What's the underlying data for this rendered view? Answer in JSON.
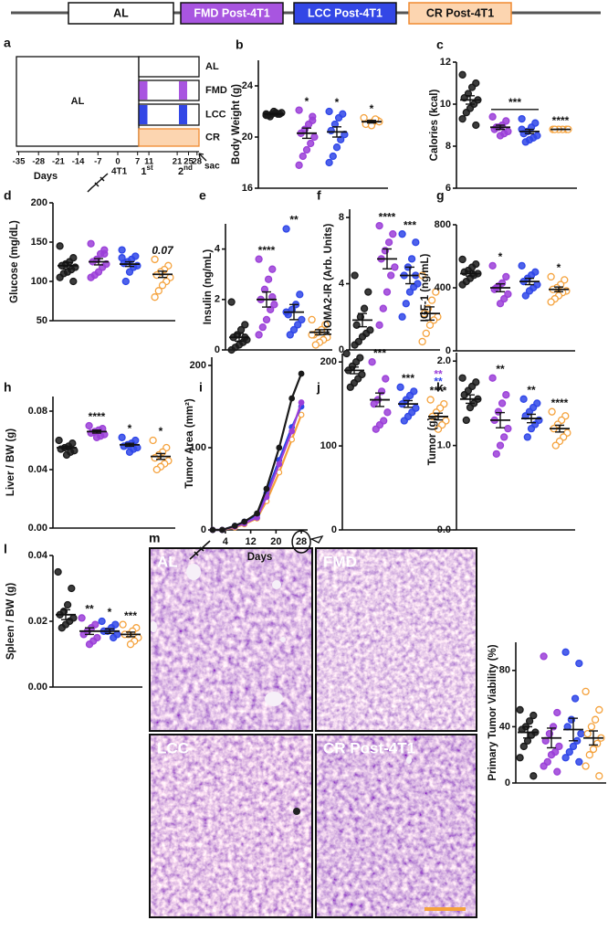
{
  "legend": {
    "items": [
      {
        "label": "AL",
        "color": "#ffffff"
      },
      {
        "label": "FMD Post-4T1",
        "color": "#a855e0"
      },
      {
        "label": "LCC Post-4T1",
        "color": "#3347e6"
      },
      {
        "label": "CR Post-4T1",
        "color": "#fcd5b0"
      }
    ]
  },
  "schematic": {
    "panel": "a",
    "phase_label": "AL",
    "rows": [
      "AL",
      "FMD",
      "LCC",
      "CR"
    ],
    "ticks": [
      -35,
      -28,
      -21,
      -14,
      -7,
      0,
      7,
      11,
      21,
      25,
      28
    ],
    "xlabel": "Days",
    "injection": "4T1",
    "cycles": [
      {
        "number": "1",
        "suffix": "st"
      },
      {
        "number": "2",
        "suffix": "nd"
      }
    ],
    "endpoint": "sac"
  },
  "chart_data": [
    {
      "type": "strip",
      "panel": "b",
      "ylabel": "Body Weight (g)",
      "ylim": [
        16,
        26
      ],
      "yticks": [
        16,
        20,
        24
      ],
      "series": [
        {
          "color": "#1a1a1a",
          "values": [
            21.7,
            21.8,
            21.9,
            21.8,
            21.7,
            21.9,
            21.8,
            22.0,
            21.6,
            21.8
          ],
          "mean": 21.8,
          "sem": 0.05
        },
        {
          "color": "#9b3fd8",
          "values": [
            22.1,
            21.3,
            21.0,
            20.6,
            20.3,
            20.0,
            19.5,
            19.0,
            18.5,
            17.8,
            21.6
          ],
          "mean": 20.3,
          "sem": 0.4,
          "label": "*"
        },
        {
          "color": "#2f46e8",
          "values": [
            22.0,
            21.8,
            21.5,
            21.0,
            20.5,
            20.2,
            19.8,
            19.2,
            18.5,
            18.0
          ],
          "mean": 20.4,
          "sem": 0.4,
          "label": "*"
        },
        {
          "color": "#f5a23c",
          "hollow": true,
          "values": [
            21.5,
            21.3,
            21.2,
            21.1,
            21.0,
            21.2,
            21.4,
            20.9
          ],
          "mean": 21.2,
          "sem": 0.1,
          "label": "*"
        }
      ]
    },
    {
      "type": "strip",
      "panel": "c",
      "ylabel": "Calories (kcal)",
      "ylim": [
        6,
        12
      ],
      "yticks": [
        6,
        8,
        10,
        12
      ],
      "bracket_label": "***",
      "series": [
        {
          "color": "#1a1a1a",
          "values": [
            11.4,
            11.0,
            10.8,
            10.5,
            10.3,
            10.2,
            10.0,
            9.8,
            9.6,
            9.3,
            9.0
          ],
          "mean": 10.2,
          "sem": 0.2
        },
        {
          "color": "#9b3fd8",
          "values": [
            9.4,
            9.2,
            9.0,
            8.9,
            8.8,
            8.7,
            8.6,
            8.5,
            8.9
          ],
          "mean": 8.9,
          "sem": 0.1
        },
        {
          "color": "#2f46e8",
          "values": [
            9.3,
            9.1,
            8.9,
            8.7,
            8.6,
            8.5,
            8.4,
            8.3,
            8.2,
            8.8
          ],
          "mean": 8.7,
          "sem": 0.1
        },
        {
          "color": "#f5a23c",
          "hollow": true,
          "values": [
            8.8,
            8.8,
            8.8,
            8.8,
            8.8,
            8.8
          ],
          "mean": 8.8,
          "sem": 0.01,
          "label": "****"
        }
      ]
    },
    {
      "type": "strip",
      "panel": "d",
      "ylabel": "Glucose (mg/dL)",
      "ylim": [
        50,
        200
      ],
      "yticks": [
        50,
        100,
        150,
        200
      ],
      "series": [
        {
          "color": "#1a1a1a",
          "values": [
            145,
            130,
            125,
            122,
            120,
            118,
            115,
            112,
            110,
            105,
            100
          ],
          "mean": 120,
          "sem": 4
        },
        {
          "color": "#9b3fd8",
          "values": [
            148,
            140,
            135,
            128,
            125,
            122,
            118,
            112,
            108,
            105,
            135
          ],
          "mean": 125,
          "sem": 4
        },
        {
          "color": "#2f46e8",
          "values": [
            140,
            132,
            128,
            125,
            123,
            120,
            118,
            112,
            100,
            130
          ],
          "mean": 122,
          "sem": 3
        },
        {
          "color": "#f5a23c",
          "hollow": true,
          "values": [
            128,
            120,
            115,
            112,
            108,
            105,
            100,
            95,
            88,
            80
          ],
          "mean": 109,
          "sem": 4,
          "label": "0.07",
          "label_style": "italic"
        }
      ]
    },
    {
      "type": "strip",
      "panel": "e",
      "ylabel": "Insulin (ng/mL)",
      "ylim": [
        0,
        5
      ],
      "yticks": [
        0,
        2,
        4
      ],
      "series": [
        {
          "color": "#1a1a1a",
          "values": [
            1.9,
            1.0,
            0.8,
            0.6,
            0.5,
            0.4,
            0.3,
            0.2,
            0.1,
            0.0,
            0.5
          ],
          "mean": 0.5,
          "sem": 0.15
        },
        {
          "color": "#9b3fd8",
          "values": [
            3.6,
            3.2,
            2.8,
            2.4,
            2.0,
            1.8,
            1.6,
            1.2,
            0.9,
            0.6,
            2.1
          ],
          "mean": 2.0,
          "sem": 0.3,
          "label": "****"
        },
        {
          "color": "#2f46e8",
          "values": [
            4.8,
            2.2,
            1.8,
            1.6,
            1.4,
            1.2,
            1.0,
            0.8,
            0.6,
            1.5
          ],
          "mean": 1.5,
          "sem": 0.3,
          "label": "**"
        },
        {
          "color": "#f5a23c",
          "hollow": true,
          "values": [
            1.2,
            1.0,
            0.8,
            0.7,
            0.6,
            0.5,
            0.4,
            0.3,
            0.2,
            0.6
          ],
          "mean": 0.7,
          "sem": 0.1
        }
      ]
    },
    {
      "type": "strip",
      "panel": "f",
      "ylabel": "HOMA2-IR (Arb. Units)",
      "ylim": [
        0,
        8.5
      ],
      "yticks": [
        0,
        4,
        8
      ],
      "series": [
        {
          "color": "#1a1a1a",
          "values": [
            4.5,
            3.5,
            2.5,
            2.0,
            1.5,
            1.2,
            1.0,
            0.8,
            0.5,
            0.3
          ],
          "mean": 1.8,
          "sem": 0.4
        },
        {
          "color": "#9b3fd8",
          "values": [
            7.5,
            7.0,
            6.5,
            6.0,
            5.5,
            5.0,
            4.5,
            3.5,
            2.5,
            1.5
          ],
          "mean": 5.5,
          "sem": 0.6,
          "label": "****"
        },
        {
          "color": "#2f46e8",
          "values": [
            7.0,
            6.5,
            5.5,
            5.0,
            4.5,
            4.0,
            3.8,
            3.5,
            2.8,
            2.0,
            4.5
          ],
          "mean": 4.5,
          "sem": 0.5,
          "label": "***"
        },
        {
          "color": "#f5a23c",
          "hollow": true,
          "values": [
            4.5,
            3.5,
            3.0,
            2.5,
            2.2,
            2.0,
            1.8,
            1.5,
            1.0,
            0.5
          ],
          "mean": 2.2,
          "sem": 0.4
        }
      ]
    },
    {
      "type": "strip",
      "panel": "g",
      "ylabel": "IGF-1 (ng/mL)",
      "ylim": [
        0,
        800
      ],
      "yticks": [
        0,
        400,
        800
      ],
      "series": [
        {
          "color": "#1a1a1a",
          "values": [
            580,
            550,
            530,
            510,
            500,
            490,
            480,
            460,
            440,
            420
          ],
          "mean": 490,
          "sem": 15
        },
        {
          "color": "#9b3fd8",
          "values": [
            540,
            470,
            430,
            410,
            390,
            360,
            330,
            300,
            400
          ],
          "mean": 400,
          "sem": 25,
          "label": "*"
        },
        {
          "color": "#2f46e8",
          "values": [
            540,
            500,
            480,
            460,
            440,
            420,
            400,
            380,
            350
          ],
          "mean": 440,
          "sem": 20
        },
        {
          "color": "#f5a23c",
          "hollow": true,
          "values": [
            470,
            450,
            420,
            400,
            390,
            380,
            370,
            350,
            330,
            310
          ],
          "mean": 390,
          "sem": 15,
          "label": "*"
        }
      ]
    },
    {
      "type": "strip",
      "panel": "h",
      "ylabel": "Liver / BW (g)",
      "ylim": [
        0,
        0.09
      ],
      "yticks": [
        {
          "value": 0,
          "label": "0.00"
        },
        {
          "value": 0.04,
          "label": "0.04"
        },
        {
          "value": 0.08,
          "label": "0.08"
        }
      ],
      "series": [
        {
          "color": "#1a1a1a",
          "values": [
            0.06,
            0.058,
            0.056,
            0.055,
            0.054,
            0.053,
            0.052,
            0.05
          ],
          "mean": 0.055,
          "sem": 0.001
        },
        {
          "color": "#9b3fd8",
          "values": [
            0.07,
            0.068,
            0.067,
            0.066,
            0.065,
            0.064,
            0.063,
            0.062
          ],
          "mean": 0.066,
          "sem": 0.001,
          "label": "****"
        },
        {
          "color": "#2f46e8",
          "values": [
            0.062,
            0.06,
            0.058,
            0.057,
            0.056,
            0.055,
            0.054,
            0.052
          ],
          "mean": 0.057,
          "sem": 0.001,
          "label": "*"
        },
        {
          "color": "#f5a23c",
          "hollow": true,
          "values": [
            0.06,
            0.055,
            0.052,
            0.05,
            0.048,
            0.046,
            0.044,
            0.042,
            0.04
          ],
          "mean": 0.049,
          "sem": 0.002,
          "label": "*"
        }
      ]
    },
    {
      "type": "line",
      "panel": "i",
      "ylabel": "Tumor Area (mm²)",
      "xlabel": "Days",
      "x": [
        0,
        3,
        7,
        10,
        14,
        17,
        21,
        25,
        28
      ],
      "xlim": [
        0,
        30
      ],
      "xticks": [
        4,
        12,
        20,
        28
      ],
      "ylim": [
        0,
        210
      ],
      "yticks": [
        0,
        100,
        200
      ],
      "series": [
        {
          "color": "#f5a23c",
          "hollow": true,
          "values": [
            0,
            0,
            3,
            7,
            14,
            35,
            70,
            110,
            140
          ]
        },
        {
          "color": "#2f46e8",
          "values": [
            0,
            0,
            5,
            10,
            18,
            45,
            85,
            125,
            150
          ]
        },
        {
          "color": "#9b3fd8",
          "values": [
            0,
            0,
            4,
            8,
            15,
            40,
            80,
            120,
            155
          ]
        },
        {
          "color": "#1a1a1a",
          "values": [
            0,
            0,
            5,
            10,
            20,
            50,
            100,
            160,
            190
          ]
        }
      ]
    },
    {
      "type": "strip",
      "panel": "j",
      "ylim": [
        0,
        210
      ],
      "yticks": [
        0,
        100,
        200
      ],
      "series": [
        {
          "color": "#1a1a1a",
          "values": [
            210,
            205,
            200,
            195,
            190,
            185,
            180,
            175,
            170
          ],
          "mean": 190,
          "sem": 4
        },
        {
          "color": "#9b3fd8",
          "values": [
            200,
            180,
            165,
            155,
            150,
            140,
            130,
            125,
            120
          ],
          "mean": 155,
          "sem": 8,
          "label": "***"
        },
        {
          "color": "#2f46e8",
          "values": [
            170,
            165,
            160,
            155,
            150,
            145,
            140,
            135,
            130
          ],
          "mean": 150,
          "sem": 4,
          "label": "***"
        },
        {
          "color": "#f5a23c",
          "hollow": true,
          "values": [
            155,
            150,
            145,
            140,
            135,
            130,
            125,
            120
          ],
          "mean": 135,
          "sem": 4,
          "label": "****",
          "extra_labels": [
            {
              "text": "**",
              "color": "#2f46e8"
            },
            {
              "text": "**",
              "color": "#9b3fd8"
            }
          ]
        }
      ]
    },
    {
      "type": "strip",
      "panel": "k",
      "ylabel": "Tumor (g)",
      "ylim": [
        0,
        2.1
      ],
      "yticks": [
        {
          "value": 0,
          "label": "0.0"
        },
        {
          "value": 1,
          "label": "1.0"
        },
        {
          "value": 2,
          "label": "2.0"
        }
      ],
      "series": [
        {
          "color": "#1a1a1a",
          "values": [
            1.8,
            1.75,
            1.7,
            1.65,
            1.6,
            1.55,
            1.5,
            1.45,
            1.3
          ],
          "mean": 1.55,
          "sem": 0.05
        },
        {
          "color": "#9b3fd8",
          "values": [
            1.8,
            1.6,
            1.5,
            1.4,
            1.3,
            1.2,
            1.1,
            1.0,
            0.9
          ],
          "mean": 1.3,
          "sem": 0.09,
          "label": "**"
        },
        {
          "color": "#2f46e8",
          "values": [
            1.55,
            1.5,
            1.45,
            1.4,
            1.35,
            1.3,
            1.25,
            1.2,
            1.1
          ],
          "mean": 1.32,
          "sem": 0.05,
          "label": "**"
        },
        {
          "color": "#f5a23c",
          "hollow": true,
          "values": [
            1.4,
            1.35,
            1.3,
            1.25,
            1.2,
            1.15,
            1.1,
            1.05,
            1.0
          ],
          "mean": 1.2,
          "sem": 0.04,
          "label": "****"
        }
      ]
    },
    {
      "type": "strip",
      "panel": "l",
      "ylabel": "Spleen / BW (g)",
      "ylim": [
        0,
        0.04
      ],
      "yticks": [
        {
          "value": 0,
          "label": "0.00"
        },
        {
          "value": 0.02,
          "label": "0.02"
        },
        {
          "value": 0.04,
          "label": "0.04"
        }
      ],
      "series": [
        {
          "color": "#1a1a1a",
          "values": [
            0.035,
            0.03,
            0.025,
            0.023,
            0.022,
            0.021,
            0.02,
            0.019,
            0.018
          ],
          "mean": 0.022,
          "sem": 0.0015
        },
        {
          "color": "#9b3fd8",
          "values": [
            0.021,
            0.019,
            0.018,
            0.017,
            0.016,
            0.015,
            0.014,
            0.013
          ],
          "mean": 0.017,
          "sem": 0.001,
          "label": "**"
        },
        {
          "color": "#2f46e8",
          "values": [
            0.02,
            0.019,
            0.018,
            0.017,
            0.017,
            0.016,
            0.015
          ],
          "mean": 0.017,
          "sem": 0.0007,
          "label": "*"
        },
        {
          "color": "#f5a23c",
          "hollow": true,
          "values": [
            0.019,
            0.018,
            0.017,
            0.016,
            0.016,
            0.015,
            0.014,
            0.013
          ],
          "mean": 0.016,
          "sem": 0.0007,
          "label": "***"
        }
      ]
    },
    {
      "type": "strip",
      "ylabel": "Primary Tumor Viability (%)",
      "ylim": [
        0,
        100
      ],
      "yticks": [
        0,
        40,
        80
      ],
      "series": [
        {
          "color": "#1a1a1a",
          "values": [
            52,
            48,
            44,
            40,
            38,
            36,
            34,
            30,
            26,
            18,
            5
          ],
          "mean": 36,
          "sem": 4
        },
        {
          "color": "#9b3fd8",
          "values": [
            90,
            50,
            40,
            35,
            30,
            26,
            22,
            20,
            15,
            12,
            8
          ],
          "mean": 32,
          "sem": 7
        },
        {
          "color": "#2f46e8",
          "values": [
            93,
            85,
            60,
            45,
            40,
            35,
            30,
            26,
            22,
            18,
            15
          ],
          "mean": 38,
          "sem": 8
        },
        {
          "color": "#f5a23c",
          "hollow": true,
          "values": [
            65,
            52,
            45,
            40,
            35,
            32,
            28,
            24,
            20,
            12,
            5
          ],
          "mean": 32,
          "sem": 5
        }
      ]
    }
  ],
  "histology": {
    "panel": "m",
    "labels": [
      "AL",
      "FMD",
      "LCC",
      "CR Post-4T1"
    ]
  }
}
